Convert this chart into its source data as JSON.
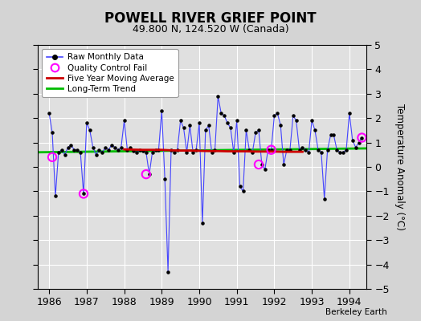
{
  "title": "POWELL RIVER GRIEF POINT",
  "subtitle": "49.800 N, 124.520 W (Canada)",
  "ylabel": "Temperature Anomaly (°C)",
  "credit": "Berkeley Earth",
  "ylim": [
    -5,
    5
  ],
  "xlim": [
    1985.7,
    1994.45
  ],
  "yticks": [
    -5,
    -4,
    -3,
    -2,
    -1,
    0,
    1,
    2,
    3,
    4,
    5
  ],
  "xticks": [
    1986,
    1987,
    1988,
    1989,
    1990,
    1991,
    1992,
    1993,
    1994
  ],
  "background_color": "#d4d4d4",
  "plot_bg_color": "#e0e0e0",
  "grid_color": "#ffffff",
  "raw_color": "#4444ff",
  "moving_avg_color": "#cc0000",
  "trend_color": "#00bb00",
  "qc_fail_color": "#ff00ff",
  "raw_data": [
    [
      1986.0,
      2.2
    ],
    [
      1986.083,
      1.4
    ],
    [
      1986.167,
      -1.2
    ],
    [
      1986.25,
      0.6
    ],
    [
      1986.333,
      0.7
    ],
    [
      1986.417,
      0.5
    ],
    [
      1986.5,
      0.8
    ],
    [
      1986.583,
      0.9
    ],
    [
      1986.667,
      0.7
    ],
    [
      1986.75,
      0.7
    ],
    [
      1986.833,
      0.6
    ],
    [
      1986.917,
      -1.1
    ],
    [
      1987.0,
      1.8
    ],
    [
      1987.083,
      1.5
    ],
    [
      1987.167,
      0.8
    ],
    [
      1987.25,
      0.5
    ],
    [
      1987.333,
      0.7
    ],
    [
      1987.417,
      0.6
    ],
    [
      1987.5,
      0.8
    ],
    [
      1987.583,
      0.7
    ],
    [
      1987.667,
      0.9
    ],
    [
      1987.75,
      0.8
    ],
    [
      1987.833,
      0.7
    ],
    [
      1987.917,
      0.8
    ],
    [
      1988.0,
      1.9
    ],
    [
      1988.083,
      0.7
    ],
    [
      1988.167,
      0.8
    ],
    [
      1988.25,
      0.65
    ],
    [
      1988.333,
      0.6
    ],
    [
      1988.417,
      0.7
    ],
    [
      1988.5,
      0.65
    ],
    [
      1988.583,
      0.6
    ],
    [
      1988.667,
      -0.3
    ],
    [
      1988.75,
      0.6
    ],
    [
      1988.833,
      0.7
    ],
    [
      1988.917,
      0.7
    ],
    [
      1989.0,
      2.3
    ],
    [
      1989.083,
      -0.5
    ],
    [
      1989.167,
      -4.3
    ],
    [
      1989.25,
      0.7
    ],
    [
      1989.333,
      0.6
    ],
    [
      1989.417,
      0.7
    ],
    [
      1989.5,
      1.9
    ],
    [
      1989.583,
      1.6
    ],
    [
      1989.667,
      0.6
    ],
    [
      1989.75,
      1.7
    ],
    [
      1989.833,
      0.6
    ],
    [
      1989.917,
      0.7
    ],
    [
      1990.0,
      1.8
    ],
    [
      1990.083,
      -2.3
    ],
    [
      1990.167,
      1.5
    ],
    [
      1990.25,
      1.7
    ],
    [
      1990.333,
      0.6
    ],
    [
      1990.417,
      0.7
    ],
    [
      1990.5,
      2.9
    ],
    [
      1990.583,
      2.2
    ],
    [
      1990.667,
      2.1
    ],
    [
      1990.75,
      1.8
    ],
    [
      1990.833,
      1.6
    ],
    [
      1990.917,
      0.6
    ],
    [
      1991.0,
      1.9
    ],
    [
      1991.083,
      -0.8
    ],
    [
      1991.167,
      -1.0
    ],
    [
      1991.25,
      1.5
    ],
    [
      1991.333,
      0.7
    ],
    [
      1991.417,
      0.6
    ],
    [
      1991.5,
      1.4
    ],
    [
      1991.583,
      1.5
    ],
    [
      1991.667,
      0.1
    ],
    [
      1991.75,
      -0.1
    ],
    [
      1991.833,
      0.7
    ],
    [
      1991.917,
      0.7
    ],
    [
      1992.0,
      2.1
    ],
    [
      1992.083,
      2.2
    ],
    [
      1992.167,
      1.7
    ],
    [
      1992.25,
      0.1
    ],
    [
      1992.333,
      0.7
    ],
    [
      1992.417,
      0.7
    ],
    [
      1992.5,
      2.1
    ],
    [
      1992.583,
      1.9
    ],
    [
      1992.667,
      0.7
    ],
    [
      1992.75,
      0.8
    ],
    [
      1992.833,
      0.7
    ],
    [
      1992.917,
      0.6
    ],
    [
      1993.0,
      1.9
    ],
    [
      1993.083,
      1.5
    ],
    [
      1993.167,
      0.7
    ],
    [
      1993.25,
      0.6
    ],
    [
      1993.333,
      -1.3
    ],
    [
      1993.417,
      0.7
    ],
    [
      1993.5,
      1.3
    ],
    [
      1993.583,
      1.3
    ],
    [
      1993.667,
      0.7
    ],
    [
      1993.75,
      0.6
    ],
    [
      1993.833,
      0.6
    ],
    [
      1993.917,
      0.7
    ],
    [
      1994.0,
      2.2
    ],
    [
      1994.083,
      1.1
    ],
    [
      1994.167,
      0.8
    ],
    [
      1994.25,
      1.0
    ],
    [
      1994.333,
      1.2
    ]
  ],
  "qc_fail_points": [
    [
      1986.083,
      0.4
    ],
    [
      1986.917,
      -1.1
    ],
    [
      1988.583,
      -0.3
    ],
    [
      1991.583,
      0.1
    ],
    [
      1991.917,
      0.7
    ],
    [
      1994.333,
      1.2
    ]
  ],
  "moving_avg": [
    [
      1988.0,
      0.72
    ],
    [
      1988.25,
      0.71
    ],
    [
      1988.5,
      0.7
    ],
    [
      1988.75,
      0.7
    ],
    [
      1989.0,
      0.7
    ],
    [
      1989.25,
      0.68
    ],
    [
      1989.5,
      0.67
    ],
    [
      1989.75,
      0.67
    ],
    [
      1990.0,
      0.66
    ],
    [
      1990.25,
      0.65
    ],
    [
      1990.5,
      0.65
    ],
    [
      1990.75,
      0.64
    ],
    [
      1991.0,
      0.64
    ],
    [
      1991.25,
      0.64
    ],
    [
      1991.5,
      0.63
    ],
    [
      1991.75,
      0.63
    ],
    [
      1992.0,
      0.63
    ],
    [
      1992.25,
      0.62
    ],
    [
      1992.5,
      0.62
    ],
    [
      1992.75,
      0.62
    ]
  ],
  "trend_x": [
    1985.7,
    1994.5
  ],
  "trend_y": [
    0.6,
    0.76
  ]
}
